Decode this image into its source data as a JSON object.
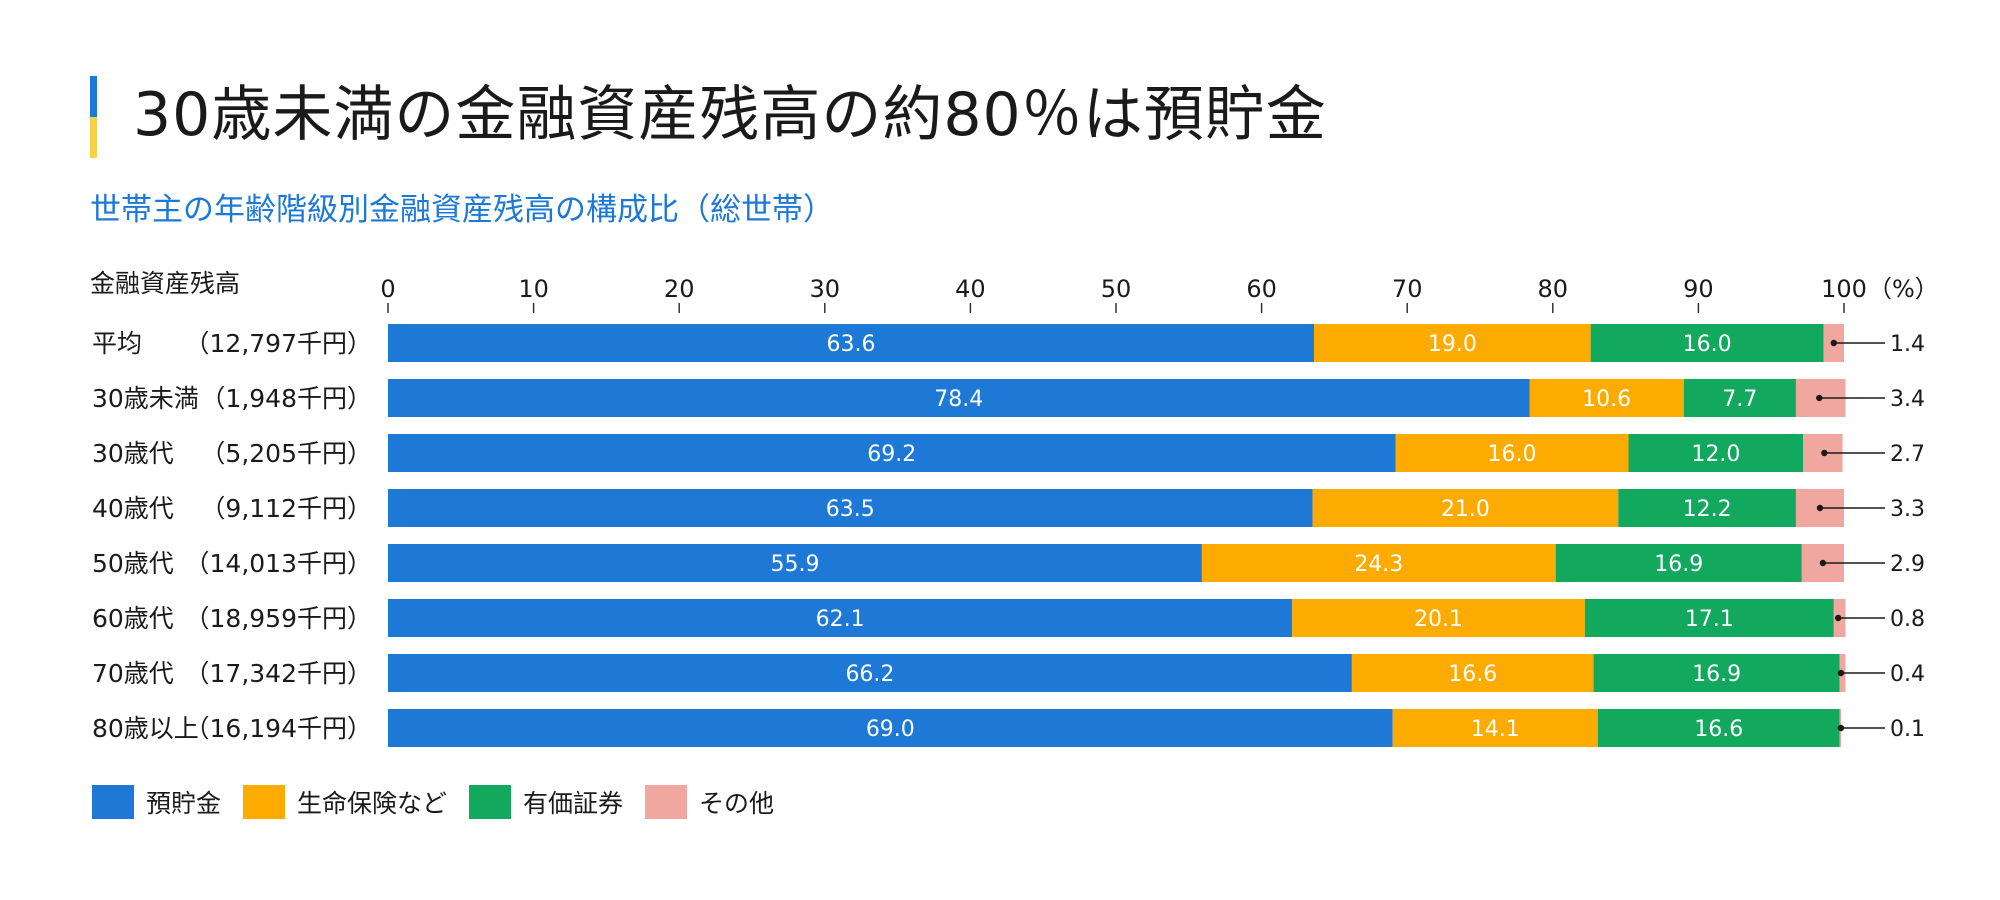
{
  "header": {
    "title": "30歳未満の金融資産残高の約80％は預貯金",
    "subtitle": "世帯主の年齢階級別金融資産残高の構成比（総世帯）"
  },
  "colors": {
    "savings": "#1d78d6",
    "insurance": "#fdab00",
    "securities": "#12a95f",
    "other": "#f0a7a0",
    "title_accent_top": "#1d78d6",
    "title_accent_bottom": "#f5d24a"
  },
  "chart_data": {
    "type": "bar",
    "orientation": "horizontal",
    "stacked": true,
    "title": "世帯主の年齢階級別金融資産残高の構成比（総世帯）",
    "row_header": "金融資産残高",
    "unit_label": "（%）",
    "xlim": [
      0,
      100
    ],
    "x_ticks": [
      0,
      10,
      20,
      30,
      40,
      50,
      60,
      70,
      80,
      90,
      100
    ],
    "categories": [
      {
        "name": "平均",
        "amount": "（12,797千円）"
      },
      {
        "name": "30歳未満",
        "amount": "（1,948千円）"
      },
      {
        "name": "30歳代",
        "amount": "（5,205千円）"
      },
      {
        "name": "40歳代",
        "amount": "（9,112千円）"
      },
      {
        "name": "50歳代",
        "amount": "（14,013千円）"
      },
      {
        "name": "60歳代",
        "amount": "（18,959千円）"
      },
      {
        "name": "70歳代",
        "amount": "（17,342千円）"
      },
      {
        "name": "80歳以上",
        "amount": "（16,194千円）"
      }
    ],
    "series": [
      {
        "name": "預貯金",
        "key": "savings",
        "values": [
          63.6,
          78.4,
          69.2,
          63.5,
          55.9,
          62.1,
          66.2,
          69.0
        ]
      },
      {
        "name": "生命保険など",
        "key": "insurance",
        "values": [
          19.0,
          10.6,
          16.0,
          21.0,
          24.3,
          20.1,
          16.6,
          14.1
        ]
      },
      {
        "name": "有価証券",
        "key": "securities",
        "values": [
          16.0,
          7.7,
          12.0,
          12.2,
          16.9,
          17.1,
          16.9,
          16.6
        ]
      },
      {
        "name": "その他",
        "key": "other",
        "values": [
          1.4,
          3.4,
          2.7,
          3.3,
          2.9,
          0.8,
          0.4,
          0.1
        ]
      }
    ],
    "legend_position": "bottom-left"
  }
}
